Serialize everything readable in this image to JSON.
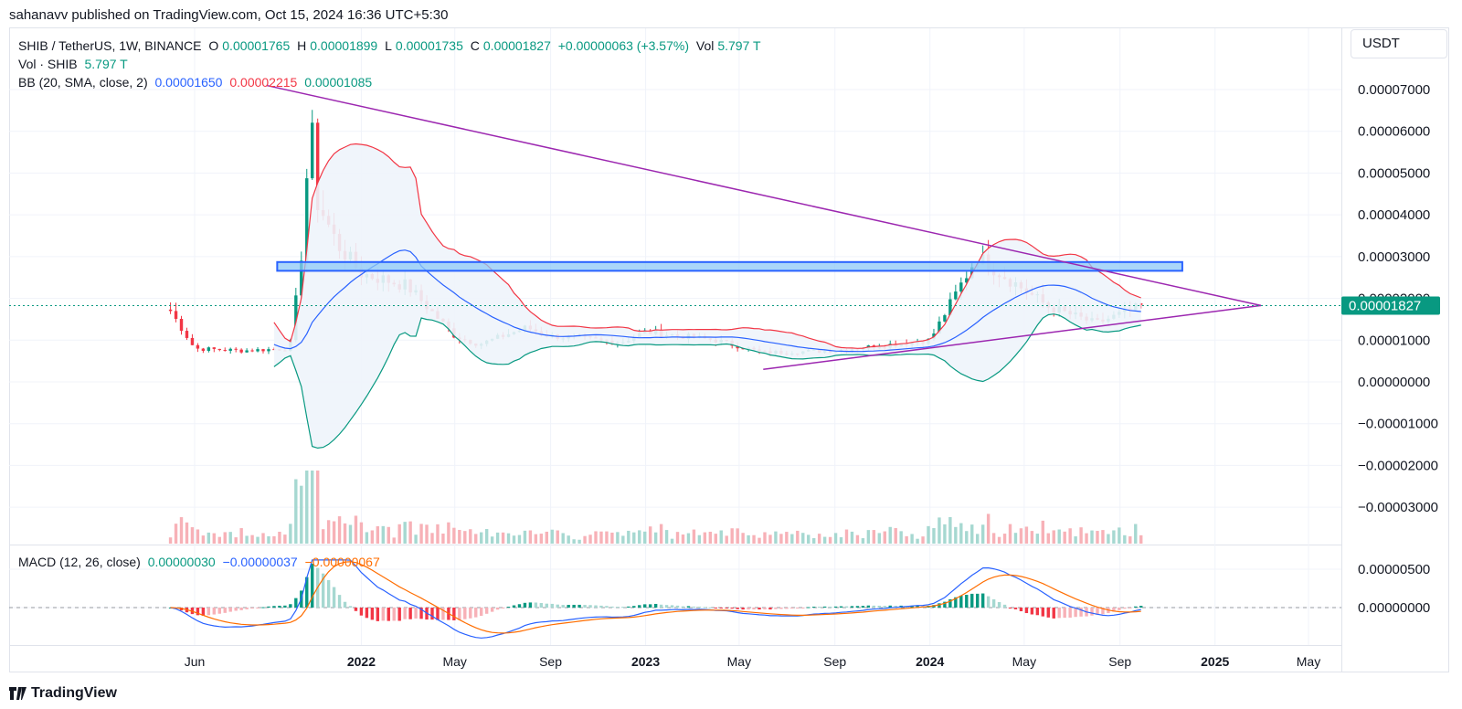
{
  "publish_line": "sahanavv published on TradingView.com, Oct 15, 2024 16:36 UTC+5:30",
  "currency": "USDT",
  "footer_brand": "TradingView",
  "legend": {
    "symbol": "SHIB / TetherUS, 1W, BINANCE",
    "o_label": "O",
    "o_value": "0.00001765",
    "h_label": "H",
    "h_value": "0.00001899",
    "l_label": "L",
    "l_value": "0.00001735",
    "c_label": "C",
    "c_value": "0.00001827",
    "change": "+0.00000063 (+3.57%)",
    "vol_label": "Vol",
    "vol_value": "5.797 T",
    "vol_row_label": "Vol · SHIB",
    "vol_row_value": "5.797 T",
    "bb_label": "BB (20, SMA, close, 2)",
    "bb_basis": "0.00001650",
    "bb_upper": "0.00002215",
    "bb_lower": "0.00001085"
  },
  "macd_legend": {
    "label": "MACD (12, 26, close)",
    "histogram": "0.00000030",
    "macd": "−0.00000037",
    "signal": "−0.00000067"
  },
  "last_price_label": "0.00001827",
  "colors": {
    "up": "#089981",
    "down": "#f23645",
    "bb_basis": "#2962ff",
    "bb_upper": "#f23645",
    "bb_lower": "#089981",
    "bb_fill": "#eef4fb",
    "trendline": "#9c27b0",
    "zone": "#8ec8f7",
    "zone_border": "#2962ff",
    "macd": "#2962ff",
    "signal": "#ff6d00",
    "vol_up": "#a6d8d1",
    "vol_down": "#f7b1b7"
  },
  "chart_data": {
    "type": "candlestick",
    "title": "SHIB / TetherUS, 1W, BINANCE",
    "y_ticks": [
      "0.00007000",
      "0.00006000",
      "0.00005000",
      "0.00004000",
      "0.00003000",
      "0.00002000",
      "0.00001000",
      "0.00000000",
      "−0.00001000",
      "−0.00002000",
      "−0.00003000"
    ],
    "y_tick_values": [
      7e-05,
      6e-05,
      5e-05,
      4e-05,
      3e-05,
      2e-05,
      1e-05,
      0,
      -1e-05,
      -2e-05,
      -3e-05
    ],
    "macd_ticks": [
      "0.00000500",
      "0.00000000"
    ],
    "macd_tick_values": [
      5e-06,
      0
    ],
    "x_ticks": [
      {
        "label": "Jun",
        "date": "2021-06",
        "year": false
      },
      {
        "label": "2022",
        "date": "2022-01",
        "year": true
      },
      {
        "label": "May",
        "date": "2022-05",
        "year": false
      },
      {
        "label": "Sep",
        "date": "2022-09",
        "year": false
      },
      {
        "label": "2023",
        "date": "2023-01",
        "year": true
      },
      {
        "label": "May",
        "date": "2023-05",
        "year": false
      },
      {
        "label": "Sep",
        "date": "2023-09",
        "year": false
      },
      {
        "label": "2024",
        "date": "2024-01",
        "year": true
      },
      {
        "label": "May",
        "date": "2024-05",
        "year": false
      },
      {
        "label": "Sep",
        "date": "2024-09",
        "year": false
      },
      {
        "label": "2025",
        "date": "2025-01",
        "year": true
      },
      {
        "label": "May",
        "date": "2025-05",
        "year": false
      }
    ],
    "support_resistance_zone": [
      2.66e-05,
      2.87e-05
    ],
    "trendlines": [
      {
        "name": "descending",
        "from": [
          "2021-09",
          "0.0000710"
        ],
        "to": [
          "2025-03",
          "0.0000183"
        ]
      },
      {
        "name": "ascending",
        "from": [
          "2023-06",
          "0.0000030"
        ],
        "to": [
          "2025-03",
          "0.0000183"
        ]
      }
    ],
    "close_path": [
      [
        "2021-05",
        1.7e-05
      ],
      [
        "2021-06",
        8e-06
      ],
      [
        "2021-08",
        7.5e-06
      ],
      [
        "2021-10",
        8e-06
      ],
      [
        "2021-10-15",
        2.8e-05
      ],
      [
        "2021-10-29",
        6.5e-05
      ],
      [
        "2021-11",
        4.5e-05
      ],
      [
        "2021-12",
        3.3e-05
      ],
      [
        "2022-01",
        2.6e-05
      ],
      [
        "2022-03",
        2.3e-05
      ],
      [
        "2022-05",
        1.1e-05
      ],
      [
        "2022-06",
        9e-06
      ],
      [
        "2022-08",
        1.3e-05
      ],
      [
        "2022-09",
        1.1e-05
      ],
      [
        "2022-12",
        9.5e-06
      ],
      [
        "2023-01",
        1.2e-05
      ],
      [
        "2023-04",
        1e-05
      ],
      [
        "2023-06",
        7e-06
      ],
      [
        "2023-09",
        7.5e-06
      ],
      [
        "2024-01",
        1e-05
      ],
      [
        "2024-03",
        3e-05
      ],
      [
        "2024-04",
        2.6e-05
      ],
      [
        "2024-06",
        1.8e-05
      ],
      [
        "2024-08",
        1.4e-05
      ],
      [
        "2024-10",
        1.83e-05
      ]
    ]
  }
}
